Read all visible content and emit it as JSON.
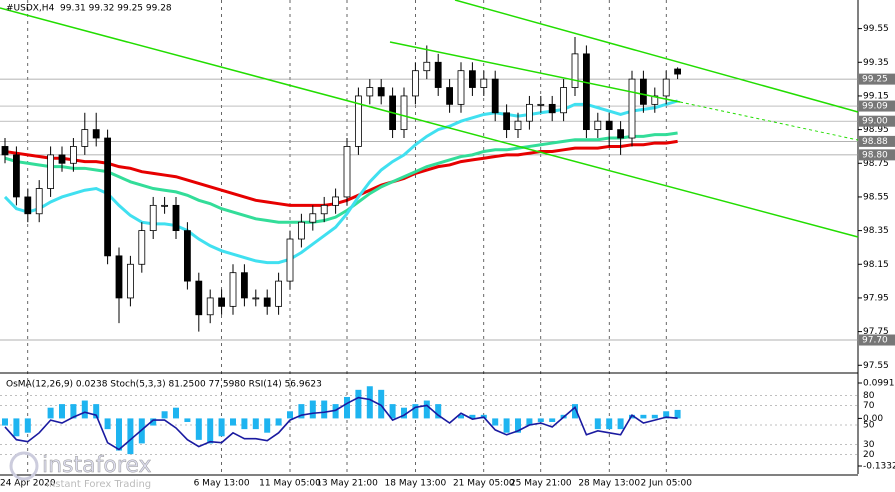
{
  "chart_data": [
    {
      "type": "candlestick",
      "title": "#USDX,H4  99.31 99.32 99.25 99.28",
      "categories": [
        null,
        null,
        "24 Apr 2020",
        null,
        null,
        null,
        null,
        null,
        null,
        null,
        null,
        null,
        null,
        null,
        null,
        null,
        null,
        null,
        null,
        "6 May 13:00",
        null,
        null,
        null,
        null,
        null,
        "11 May 05:00",
        null,
        null,
        null,
        null,
        "13 May 21:00",
        null,
        null,
        null,
        null,
        null,
        "18 May 13:00",
        null,
        null,
        null,
        null,
        null,
        "21 May 05:00",
        null,
        null,
        null,
        null,
        "25 May 21:00",
        null,
        null,
        null,
        null,
        null,
        "28 May 13:00",
        null,
        null,
        null,
        null,
        "2 Jun 05:00",
        null
      ],
      "open": [
        98.85,
        98.8,
        98.55,
        98.45,
        98.6,
        98.8,
        98.75,
        98.85,
        98.95,
        98.9,
        98.2,
        97.95,
        98.15,
        98.35,
        98.5,
        98.5,
        98.35,
        98.05,
        97.85,
        97.95,
        97.9,
        98.1,
        97.95,
        97.95,
        97.9,
        98.05,
        98.3,
        98.4,
        98.45,
        98.5,
        98.55,
        98.85,
        99.15,
        99.2,
        99.15,
        98.95,
        99.15,
        99.3,
        99.35,
        99.2,
        99.1,
        99.3,
        99.2,
        99.25,
        99.05,
        98.95,
        99.0,
        99.1,
        99.1,
        99.05,
        99.2,
        99.4,
        98.95,
        99.0,
        98.95,
        98.9,
        99.25,
        99.1,
        99.15,
        99.31
      ],
      "high": [
        98.9,
        98.85,
        98.6,
        98.65,
        98.85,
        98.85,
        98.9,
        99.05,
        99.05,
        98.95,
        98.25,
        98.2,
        98.4,
        98.55,
        98.55,
        98.55,
        98.4,
        98.1,
        98.0,
        98.0,
        98.15,
        98.15,
        98.0,
        98.0,
        98.1,
        98.35,
        98.45,
        98.5,
        98.55,
        98.6,
        98.9,
        99.2,
        99.25,
        99.25,
        99.2,
        99.2,
        99.35,
        99.45,
        99.4,
        99.25,
        99.35,
        99.35,
        99.3,
        99.3,
        99.1,
        99.05,
        99.15,
        99.15,
        99.15,
        99.25,
        99.5,
        99.45,
        99.05,
        99.05,
        99.0,
        99.3,
        99.3,
        99.2,
        99.3,
        99.32
      ],
      "low": [
        98.75,
        98.5,
        98.4,
        98.4,
        98.55,
        98.7,
        98.7,
        98.8,
        98.85,
        98.15,
        97.8,
        97.9,
        98.1,
        98.3,
        98.45,
        98.3,
        98.0,
        97.75,
        97.8,
        97.85,
        97.85,
        97.9,
        97.9,
        97.85,
        97.85,
        98.0,
        98.25,
        98.35,
        98.4,
        98.45,
        98.5,
        98.8,
        99.1,
        99.1,
        98.9,
        98.9,
        99.1,
        99.25,
        99.15,
        99.05,
        99.05,
        99.15,
        99.15,
        99.0,
        98.9,
        98.9,
        98.95,
        99.05,
        99.0,
        99.0,
        99.15,
        98.9,
        98.9,
        98.85,
        98.8,
        98.85,
        99.05,
        99.05,
        99.1,
        99.25
      ],
      "close": [
        98.8,
        98.55,
        98.45,
        98.6,
        98.8,
        98.75,
        98.85,
        98.95,
        98.9,
        98.2,
        97.95,
        98.15,
        98.35,
        98.5,
        98.5,
        98.35,
        98.05,
        97.85,
        97.95,
        97.9,
        98.1,
        97.95,
        97.95,
        97.9,
        98.05,
        98.3,
        98.4,
        98.45,
        98.5,
        98.55,
        98.85,
        99.15,
        99.2,
        99.15,
        98.95,
        99.15,
        99.3,
        99.35,
        99.2,
        99.1,
        99.3,
        99.2,
        99.25,
        99.05,
        98.95,
        99.0,
        99.1,
        99.1,
        99.05,
        99.2,
        99.4,
        98.95,
        99.0,
        98.95,
        98.9,
        99.25,
        99.1,
        99.15,
        99.25,
        99.28
      ],
      "moving_averages": [
        {
          "color": "#e60000",
          "values": [
            98.82,
            98.81,
            98.8,
            98.79,
            98.78,
            98.78,
            98.77,
            98.76,
            98.76,
            98.75,
            98.73,
            98.72,
            98.7,
            98.69,
            98.68,
            98.67,
            98.65,
            98.63,
            98.61,
            98.59,
            98.57,
            98.55,
            98.53,
            98.52,
            98.51,
            98.5,
            98.5,
            98.5,
            98.5,
            98.51,
            98.53,
            98.56,
            98.59,
            98.62,
            98.64,
            98.66,
            98.69,
            98.71,
            98.73,
            98.74,
            98.76,
            98.77,
            98.78,
            98.79,
            98.8,
            98.8,
            98.81,
            98.82,
            98.82,
            98.83,
            98.84,
            98.84,
            98.84,
            98.85,
            98.85,
            98.86,
            98.86,
            98.87,
            98.87,
            98.88
          ]
        },
        {
          "color": "#33dd99",
          "values": [
            98.78,
            98.76,
            98.75,
            98.74,
            98.73,
            98.73,
            98.72,
            98.72,
            98.71,
            98.7,
            98.67,
            98.64,
            98.62,
            98.6,
            98.59,
            98.58,
            98.56,
            98.53,
            98.51,
            98.48,
            98.46,
            98.44,
            98.42,
            98.41,
            98.4,
            98.4,
            98.4,
            98.4,
            98.41,
            98.43,
            98.47,
            98.52,
            98.57,
            98.61,
            98.64,
            98.67,
            98.7,
            98.73,
            98.75,
            98.77,
            98.79,
            98.8,
            98.82,
            98.83,
            98.83,
            98.84,
            98.85,
            98.86,
            98.87,
            98.88,
            98.89,
            98.89,
            98.89,
            98.9,
            98.9,
            98.91,
            98.91,
            98.92,
            98.92,
            98.93
          ]
        },
        {
          "color": "#40e0f0",
          "values": [
            98.55,
            98.48,
            98.46,
            98.48,
            98.52,
            98.55,
            98.57,
            98.59,
            98.6,
            98.57,
            98.5,
            98.44,
            98.4,
            98.39,
            98.39,
            98.38,
            98.35,
            98.3,
            98.26,
            98.23,
            98.21,
            98.19,
            98.17,
            98.16,
            98.16,
            98.18,
            98.22,
            98.27,
            98.32,
            98.37,
            98.45,
            98.55,
            98.64,
            98.71,
            98.76,
            98.8,
            98.86,
            98.91,
            98.95,
            98.97,
            99.0,
            99.02,
            99.04,
            99.05,
            99.04,
            99.03,
            99.04,
            99.05,
            99.06,
            99.07,
            99.1,
            99.1,
            99.08,
            99.06,
            99.04,
            99.06,
            99.07,
            99.08,
            99.1,
            99.12
          ]
        }
      ],
      "ylim": [
        97.51,
        99.72
      ],
      "yticks": [
        99.55,
        99.35,
        99.15,
        98.95,
        98.75,
        98.55,
        98.35,
        98.15,
        97.95,
        97.75,
        97.55
      ],
      "price_levels": [
        99.25,
        99.09,
        {
          "value": 99.0,
          "label": "99.00"
        },
        98.88,
        {
          "value": 98.8,
          "label": "98.80"
        },
        {
          "value": 97.7,
          "label": "97.70"
        }
      ]
    },
    {
      "type": "oscillator",
      "title": "OsMA(12,26,9) 0.0238 Stoch(5,3,3) 81.2500 77.5980 RSI(14) 56.9623",
      "histogram": {
        "color": "#1eb4f0",
        "values": [
          -0.02,
          -0.05,
          -0.04,
          0.0,
          0.03,
          0.04,
          0.04,
          0.05,
          0.04,
          -0.03,
          -0.09,
          -0.1,
          -0.07,
          -0.02,
          0.02,
          0.03,
          -0.01,
          -0.06,
          -0.07,
          -0.05,
          -0.02,
          -0.03,
          -0.03,
          -0.04,
          -0.02,
          0.02,
          0.04,
          0.05,
          0.05,
          0.04,
          0.06,
          0.08,
          0.09,
          0.08,
          0.04,
          0.03,
          0.04,
          0.05,
          0.04,
          0.0,
          0.01,
          0.01,
          0.01,
          -0.02,
          -0.04,
          -0.04,
          -0.02,
          -0.01,
          -0.01,
          0.01,
          0.04,
          0.0,
          -0.03,
          -0.03,
          -0.03,
          0.01,
          0.01,
          0.01,
          0.02,
          0.0238
        ]
      },
      "line": {
        "color": "#1a1aa0",
        "axis": "y2",
        "values": [
          48,
          35,
          33,
          42,
          55,
          52,
          58,
          63,
          60,
          32,
          25,
          35,
          45,
          55,
          55,
          47,
          35,
          28,
          33,
          32,
          42,
          36,
          36,
          34,
          42,
          55,
          60,
          62,
          63,
          65,
          72,
          78,
          76,
          70,
          55,
          60,
          68,
          70,
          60,
          52,
          62,
          56,
          58,
          45,
          40,
          44,
          50,
          52,
          48,
          58,
          68,
          40,
          44,
          42,
          40,
          60,
          52,
          55,
          58,
          56.9623
        ]
      },
      "ylim": [
        -0.1556,
        0.1187
      ],
      "yticks": [
        0.0991,
        {
          "value": 0,
          "label": "0.00"
        },
        -0.1332
      ],
      "y2lim": [
        0,
        100
      ],
      "y2ticks": [
        80,
        70,
        50,
        30,
        20
      ]
    }
  ],
  "watermark": {
    "brand": "instaforex",
    "tagline": "Instant Forex Trading"
  }
}
